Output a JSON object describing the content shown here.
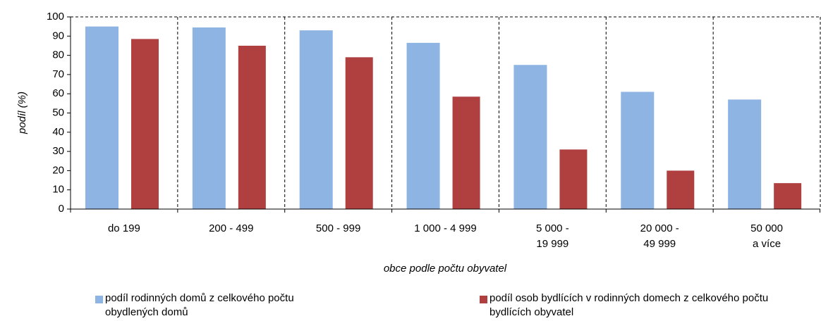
{
  "chart_data": {
    "type": "bar",
    "categories": [
      "do 199",
      "200 - 499",
      "500 - 999",
      "1 000 - 4 999",
      "5 000 -\n19 999",
      "20 000 -\n49 999",
      "50 000\na více"
    ],
    "series": [
      {
        "name": "podíl rodinných domů z celkového počtu obydlených domů",
        "color": "#8eb4e3",
        "values": [
          95,
          94.5,
          93,
          86.5,
          75,
          61,
          57
        ]
      },
      {
        "name": "podíl osob bydlících v rodinných domech z celkového počtu bydlících obyvatel",
        "color": "#b04040",
        "values": [
          88.5,
          85,
          79,
          58.5,
          31,
          20,
          13.5
        ]
      }
    ],
    "ylabel": "podíl (%)",
    "xlabel": "obce podle počtu obyvatel",
    "ylim": [
      0,
      100
    ],
    "yticks": [
      0,
      10,
      20,
      30,
      40,
      50,
      60,
      70,
      80,
      90,
      100
    ],
    "grid": true,
    "legend": "bottom"
  }
}
